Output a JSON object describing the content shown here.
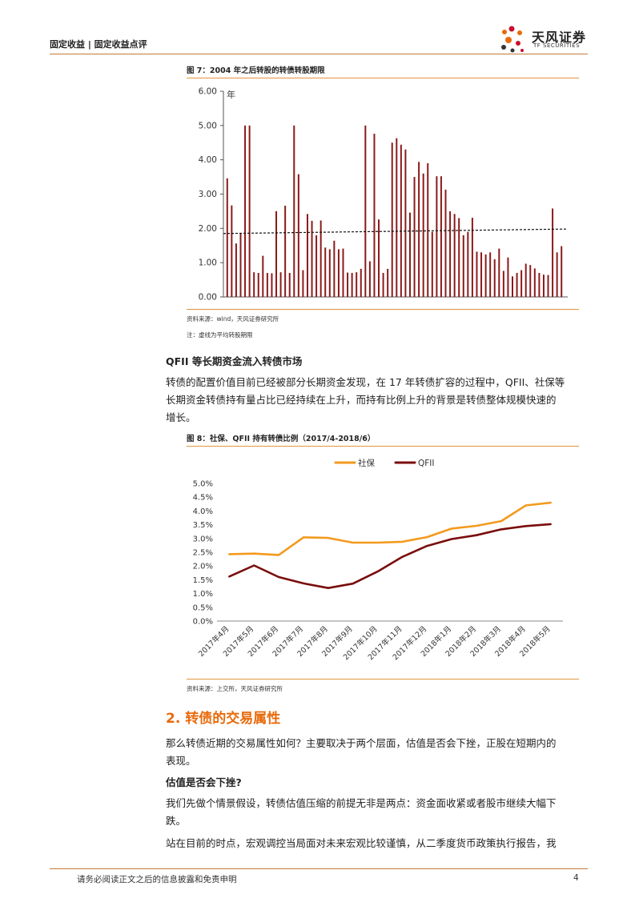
{
  "header": {
    "breadcrumb": "固定收益 | 固定收益点评",
    "logo_cn": "天风证券",
    "logo_en": "TF SECURITIES",
    "accent_color": "#c47a3a"
  },
  "figure7": {
    "title": "图 7：2004 年之后转股的转债转股期限",
    "source": "资料来源：wind，天风证券研究所",
    "note": "注：虚线为平均转股期限",
    "chart_data": {
      "type": "bar",
      "ylabel": "年",
      "ylim": [
        0,
        6
      ],
      "yticks": [
        "0.00",
        "1.00",
        "2.00",
        "3.00",
        "4.00",
        "5.00",
        "6.00"
      ],
      "bar_color": "#8b1a1a",
      "values": [
        3.46,
        2.67,
        1.56,
        1.86,
        5.0,
        5.0,
        0.72,
        0.7,
        1.2,
        0.7,
        0.69,
        2.5,
        0.72,
        2.66,
        0.7,
        5.0,
        3.58,
        0.78,
        2.42,
        2.22,
        1.8,
        2.23,
        1.44,
        1.39,
        1.64,
        1.39,
        1.41,
        0.71,
        0.7,
        0.72,
        0.82,
        5.0,
        1.04,
        4.76,
        2.26,
        0.7,
        0.82,
        4.5,
        4.63,
        4.44,
        4.3,
        2.46,
        3.5,
        3.94,
        3.6,
        3.9,
        1.9,
        3.52,
        3.52,
        3.13,
        2.5,
        2.42,
        2.3,
        1.8,
        1.9,
        2.31,
        1.32,
        1.3,
        1.24,
        1.3,
        1.1,
        1.41,
        0.76,
        1.15,
        0.6,
        0.7,
        0.78,
        0.97,
        0.93,
        0.83,
        0.7,
        0.65,
        0.64,
        2.58,
        1.3,
        1.48
      ],
      "average_line": {
        "start": 1.85,
        "end": 1.98,
        "style": "dashed"
      }
    }
  },
  "section_qfii": {
    "heading": "QFII 等长期资金流入转债市场",
    "para_lines": [
      "转债的配置价值目前已经被部分长期资金发现，在 17 年转债扩容的过程中，QFII、社保等",
      "长期资金转债持有量占比已经持续在上升，而持有比例上升的背景是转债整体规模快速的",
      "增长。"
    ]
  },
  "figure8": {
    "title": "图 8：社保、QFII 持有转债比例（2017/4-2018/6）",
    "source": "资料来源：上交所，天风证券研究所",
    "chart_data": {
      "type": "line",
      "categories": [
        "2017年4月",
        "2017年5月",
        "2017年6月",
        "2017年7月",
        "2017年8月",
        "2017年9月",
        "2017年10月",
        "2017年11月",
        "2017年12月",
        "2018年1月",
        "2018年2月",
        "2018年3月",
        "2018年4月",
        "2018年5月"
      ],
      "ylim": [
        0,
        5.0
      ],
      "yticks": [
        "0.0%",
        "0.5%",
        "1.0%",
        "1.5%",
        "2.0%",
        "2.5%",
        "3.0%",
        "3.5%",
        "4.0%",
        "4.5%",
        "5.0%"
      ],
      "legend_position": "top-center",
      "series": [
        {
          "name": "社保",
          "color": "#f39a1e",
          "values": [
            2.43,
            2.45,
            2.4,
            3.04,
            3.02,
            2.85,
            2.85,
            2.88,
            3.05,
            3.36,
            3.46,
            3.63,
            4.2,
            4.3
          ]
        },
        {
          "name": "QFII",
          "color": "#7a0c0c",
          "values": [
            1.62,
            2.02,
            1.6,
            1.37,
            1.2,
            1.36,
            1.8,
            2.33,
            2.73,
            2.98,
            3.12,
            3.33,
            3.45,
            3.52
          ]
        }
      ]
    }
  },
  "section2": {
    "heading": "2. 转债的交易属性",
    "intro_lines": [
      "那么转债近期的交易属性如何？主要取决于两个层面，估值是否会下挫，正股在短期内的",
      "表现。"
    ],
    "sub_heading": "估值是否会下挫?",
    "para2_lines": [
      "我们先做个情景假设，转债估值压缩的前提无非是两点：资金面收紧或者股市继续大幅下",
      "跌。"
    ],
    "para3_line": "站在目前的时点，宏观调控当局面对未来宏观比较谨慎，从二季度货币政策执行报告，我"
  },
  "footer": {
    "disclaimer": "请务必阅读正文之后的信息披露和免责申明",
    "page_number": "4"
  }
}
